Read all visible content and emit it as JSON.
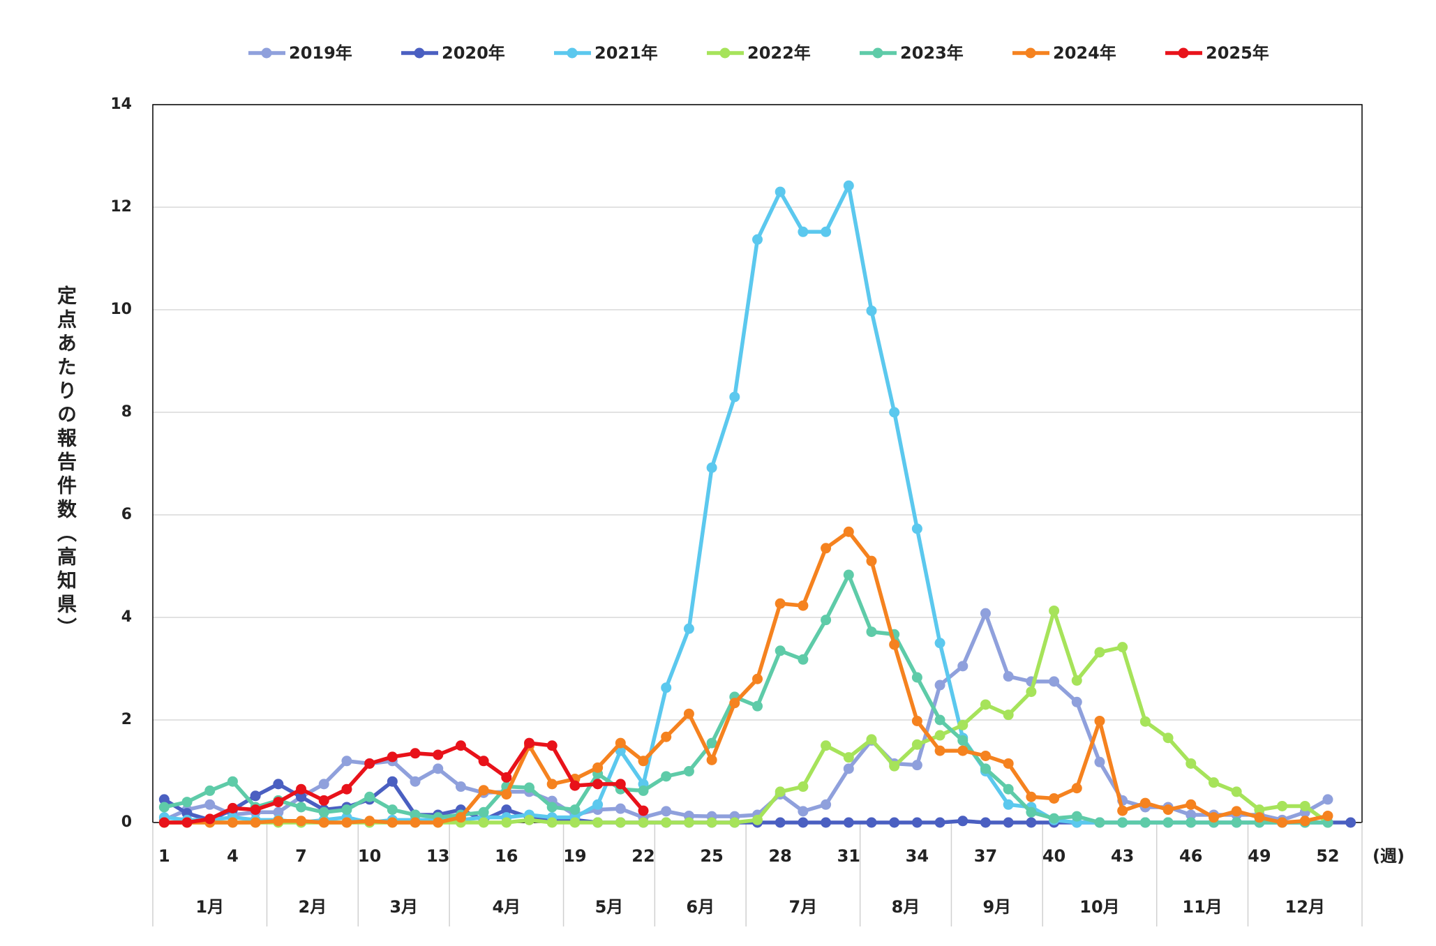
{
  "chart_data": {
    "type": "line",
    "x": [
      1,
      2,
      3,
      4,
      5,
      6,
      7,
      8,
      9,
      10,
      11,
      12,
      13,
      14,
      15,
      16,
      17,
      18,
      19,
      20,
      21,
      22,
      23,
      24,
      25,
      26,
      27,
      28,
      29,
      30,
      31,
      32,
      33,
      34,
      35,
      36,
      37,
      38,
      39,
      40,
      41,
      42,
      43,
      44,
      45,
      46,
      47,
      48,
      49,
      50,
      51,
      52,
      53
    ],
    "xlim": [
      0.5,
      53.5
    ],
    "xticks": [
      1,
      4,
      7,
      10,
      13,
      16,
      19,
      22,
      25,
      28,
      31,
      34,
      37,
      40,
      43,
      46,
      49,
      52
    ],
    "x_unit": "(週)",
    "months": [
      {
        "label": "1月",
        "end_week": 5.5
      },
      {
        "label": "2月",
        "end_week": 9.5
      },
      {
        "label": "3月",
        "end_week": 13.5
      },
      {
        "label": "4月",
        "end_week": 18.5
      },
      {
        "label": "5月",
        "end_week": 22.5
      },
      {
        "label": "6月",
        "end_week": 26.5
      },
      {
        "label": "7月",
        "end_week": 31.5
      },
      {
        "label": "8月",
        "end_week": 35.5
      },
      {
        "label": "9月",
        "end_week": 39.5
      },
      {
        "label": "10月",
        "end_week": 44.5
      },
      {
        "label": "11月",
        "end_week": 48.5
      },
      {
        "label": "12月",
        "end_week": 53.5
      }
    ],
    "y_label": "定点あたりの報告件数（高知県）",
    "ylim": [
      0,
      14
    ],
    "yticks": [
      0,
      2,
      4,
      6,
      8,
      10,
      12,
      14
    ],
    "grid": true,
    "legend": "top",
    "series": [
      {
        "name": "2019年",
        "color": "#8fa0dc",
        "values": [
          0.05,
          0.25,
          0.35,
          0.15,
          0.2,
          0.2,
          0.5,
          0.75,
          1.2,
          1.15,
          1.2,
          0.8,
          1.05,
          0.7,
          0.58,
          0.6,
          0.6,
          0.42,
          0.15,
          0.25,
          0.27,
          0.1,
          0.22,
          0.13,
          0.12,
          0.12,
          0.15,
          0.55,
          0.22,
          0.35,
          1.05,
          1.6,
          1.15,
          1.12,
          2.68,
          3.05,
          4.08,
          2.85,
          2.75,
          2.75,
          2.35,
          1.18,
          0.43,
          0.3,
          0.3,
          0.15,
          0.15,
          0.15,
          0.15,
          0.05,
          0.2,
          0.45,
          null
        ]
      },
      {
        "name": "2020年",
        "color": "#4a5fc1",
        "values": [
          0.45,
          0.18,
          0.05,
          0.25,
          0.52,
          0.75,
          0.5,
          0.25,
          0.3,
          0.45,
          0.8,
          0.15,
          0.15,
          0.25,
          0.05,
          0.25,
          0.1,
          0.05,
          0.05,
          0,
          0,
          0,
          0,
          0,
          0,
          0,
          0,
          0,
          0,
          0,
          0,
          0,
          0,
          0,
          0,
          0.03,
          0,
          0,
          0,
          0,
          0,
          0,
          0,
          0,
          0,
          0,
          0,
          0,
          0,
          0,
          0,
          0,
          0
        ]
      },
      {
        "name": "2021年",
        "color": "#5bc8ee",
        "values": [
          0.1,
          0.05,
          0.05,
          0.1,
          0.05,
          0.05,
          0,
          0.05,
          0.1,
          0,
          0.05,
          0.05,
          0.05,
          0.05,
          0.1,
          0.1,
          0.15,
          0.1,
          0.1,
          0.35,
          1.4,
          0.75,
          2.63,
          3.78,
          6.92,
          8.3,
          11.37,
          12.3,
          11.52,
          11.52,
          12.42,
          9.98,
          8.0,
          5.73,
          3.5,
          1.65,
          1.0,
          0.35,
          0.3,
          0.05,
          0,
          0,
          0,
          0,
          0,
          0,
          0,
          0,
          0,
          0,
          0,
          0,
          null
        ]
      },
      {
        "name": "2022年",
        "color": "#a6e35a",
        "values": [
          0,
          0,
          0,
          0,
          0,
          0,
          0,
          0,
          0,
          0,
          0,
          0,
          0,
          0,
          0,
          0,
          0.05,
          0,
          0,
          0,
          0,
          0,
          0,
          0,
          0,
          0,
          0.05,
          0.6,
          0.7,
          1.5,
          1.27,
          1.62,
          1.1,
          1.52,
          1.7,
          1.9,
          2.3,
          2.1,
          2.55,
          4.13,
          2.77,
          3.32,
          3.42,
          1.97,
          1.65,
          1.15,
          0.78,
          0.6,
          0.25,
          0.32,
          0.32,
          0,
          null
        ]
      },
      {
        "name": "2023年",
        "color": "#5ecba8",
        "values": [
          0.3,
          0.4,
          0.62,
          0.8,
          0.3,
          0.43,
          0.3,
          0.2,
          0.25,
          0.5,
          0.25,
          0.15,
          0.1,
          0.15,
          0.2,
          0.7,
          0.68,
          0.3,
          0.25,
          0.95,
          0.65,
          0.62,
          0.9,
          1.0,
          1.55,
          2.45,
          2.27,
          3.35,
          3.18,
          3.95,
          4.83,
          3.72,
          3.67,
          2.83,
          2.0,
          1.6,
          1.05,
          0.65,
          0.2,
          0.08,
          0.12,
          0,
          0,
          0,
          0,
          0,
          0,
          0,
          0,
          0,
          0,
          0,
          null
        ]
      },
      {
        "name": "2024年",
        "color": "#f5821f",
        "values": [
          0,
          0,
          0,
          0,
          0,
          0.03,
          0.03,
          0,
          0,
          0.03,
          0,
          0,
          0,
          0.1,
          0.63,
          0.55,
          1.5,
          0.75,
          0.85,
          1.07,
          1.55,
          1.2,
          1.67,
          2.12,
          1.22,
          2.33,
          2.8,
          4.27,
          4.23,
          5.35,
          5.67,
          5.1,
          3.47,
          1.98,
          1.4,
          1.4,
          1.3,
          1.15,
          0.5,
          0.47,
          0.67,
          1.98,
          0.23,
          0.38,
          0.25,
          0.35,
          0.1,
          0.22,
          0.1,
          0,
          0.03,
          0.13,
          null
        ]
      },
      {
        "name": "2025年",
        "color": "#e8121a",
        "values": [
          0,
          0,
          0.07,
          0.28,
          0.25,
          0.4,
          0.65,
          0.43,
          0.65,
          1.15,
          1.28,
          1.35,
          1.32,
          1.5,
          1.2,
          0.88,
          1.55,
          1.5,
          0.72,
          0.75,
          0.75,
          0.23,
          null,
          null,
          null,
          null,
          null,
          null,
          null,
          null,
          null,
          null,
          null,
          null,
          null,
          null,
          null,
          null,
          null,
          null,
          null,
          null,
          null,
          null,
          null,
          null,
          null,
          null,
          null,
          null,
          null,
          null,
          null
        ]
      }
    ]
  }
}
